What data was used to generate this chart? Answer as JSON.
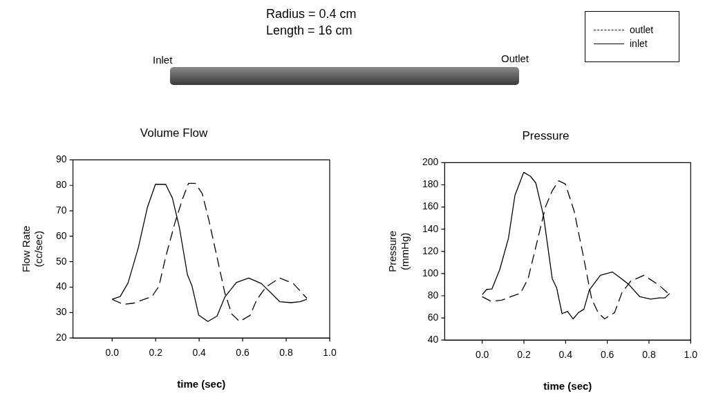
{
  "chart_data": [
    {
      "type": "line",
      "title": "Volume Flow",
      "xlabel": "time (sec)",
      "ylabel": "Flow Rate (cc/sec)",
      "annotations": [
        "Radius = 0.4 cm",
        "Length = 16 cm",
        "Inlet",
        "Outlet"
      ],
      "xlim": [
        -0.18,
        1.0
      ],
      "xticks": [
        {
          "value": 0,
          "label": "0.0"
        },
        {
          "value": 0.2,
          "label": "0.2"
        },
        {
          "value": 0.4,
          "label": "0.4"
        },
        {
          "value": 0.6,
          "label": "0.6"
        },
        {
          "value": 0.8,
          "label": "0.8"
        },
        {
          "value": 1,
          "label": "1.0"
        }
      ],
      "ylim": [
        20,
        90
      ],
      "yticks": [
        20,
        30,
        40,
        50,
        60,
        70,
        80,
        90
      ],
      "grid": false,
      "legend": "top right",
      "marker": "none",
      "series": [
        {
          "name": "outlet",
          "color": "#000000",
          "line_style": "dashed",
          "x": [
            0,
            0.052,
            0.099,
            0.141,
            0.183,
            0.215,
            0.246,
            0.288,
            0.325,
            0.351,
            0.382,
            0.414,
            0.445,
            0.482,
            0.518,
            0.55,
            0.586,
            0.634,
            0.665,
            0.707,
            0.77,
            0.833,
            0.895
          ],
          "values": [
            35.2,
            33.2,
            33.7,
            35,
            36.3,
            40.3,
            51.8,
            65.1,
            75,
            80.8,
            80.8,
            76.8,
            66.2,
            51.8,
            37.7,
            29.4,
            26.5,
            28.9,
            35.1,
            40,
            43.6,
            41.4,
            35.6
          ]
        },
        {
          "name": "inlet",
          "color": "#000000",
          "line_style": "solid",
          "x": [
            0,
            0.037,
            0.073,
            0.12,
            0.162,
            0.199,
            0.246,
            0.277,
            0.309,
            0.346,
            0.367,
            0.398,
            0.44,
            0.482,
            0.518,
            0.571,
            0.628,
            0.686,
            0.728,
            0.77,
            0.822,
            0.864,
            0.895
          ],
          "values": [
            35.2,
            36.3,
            41.6,
            55.4,
            71.3,
            80.4,
            80.4,
            75,
            63.5,
            44.9,
            40.5,
            29,
            26.5,
            28.6,
            36.1,
            41.8,
            43.6,
            41.4,
            37.9,
            34.3,
            33.9,
            34.3,
            35.2
          ]
        }
      ]
    },
    {
      "type": "line",
      "title": "Pressure",
      "xlabel": "time (sec)",
      "ylabel": "Pressure (mmHg)",
      "xlim": [
        -0.18,
        1.0
      ],
      "xticks": [
        {
          "value": 0,
          "label": "0.0"
        },
        {
          "value": 0.2,
          "label": "0.2"
        },
        {
          "value": 0.4,
          "label": "0.4"
        },
        {
          "value": 0.6,
          "label": "0.6"
        },
        {
          "value": 0.8,
          "label": "0.8"
        },
        {
          "value": 1,
          "label": "1.0"
        }
      ],
      "ylim": [
        40,
        200
      ],
      "yticks": [
        40,
        60,
        80,
        100,
        120,
        140,
        160,
        180,
        200
      ],
      "grid": false,
      "marker": "none",
      "series": [
        {
          "color": "#000000",
          "line_style": "dashed",
          "x": [
            0,
            0.042,
            0.094,
            0.136,
            0.183,
            0.22,
            0.262,
            0.304,
            0.336,
            0.367,
            0.399,
            0.441,
            0.483,
            0.525,
            0.556,
            0.587,
            0.635,
            0.671,
            0.713,
            0.776,
            0.85,
            0.899
          ],
          "values": [
            79.1,
            75,
            76,
            79.1,
            82.1,
            95.3,
            127.8,
            160.4,
            174.6,
            183.7,
            180.7,
            156.3,
            117.7,
            77,
            64.8,
            59.1,
            64.8,
            83.1,
            93.3,
            98.4,
            89.2,
            81
          ]
        },
        {
          "color": "#000000",
          "line_style": "solid",
          "x": [
            0,
            0.021,
            0.047,
            0.084,
            0.126,
            0.157,
            0.199,
            0.231,
            0.257,
            0.294,
            0.336,
            0.357,
            0.383,
            0.409,
            0.436,
            0.462,
            0.488,
            0.514,
            0.567,
            0.625,
            0.661,
            0.703,
            0.756,
            0.808,
            0.85,
            0.876,
            0.899
          ],
          "values": [
            81,
            85.6,
            86.2,
            103.5,
            131.9,
            170.5,
            191.3,
            187.8,
            181.7,
            152.2,
            95.3,
            87.2,
            63.8,
            65.9,
            59.1,
            64.8,
            67.9,
            85.2,
            98.4,
            101.4,
            96.3,
            90.2,
            79.1,
            77,
            78,
            78,
            82.1
          ]
        }
      ]
    }
  ]
}
